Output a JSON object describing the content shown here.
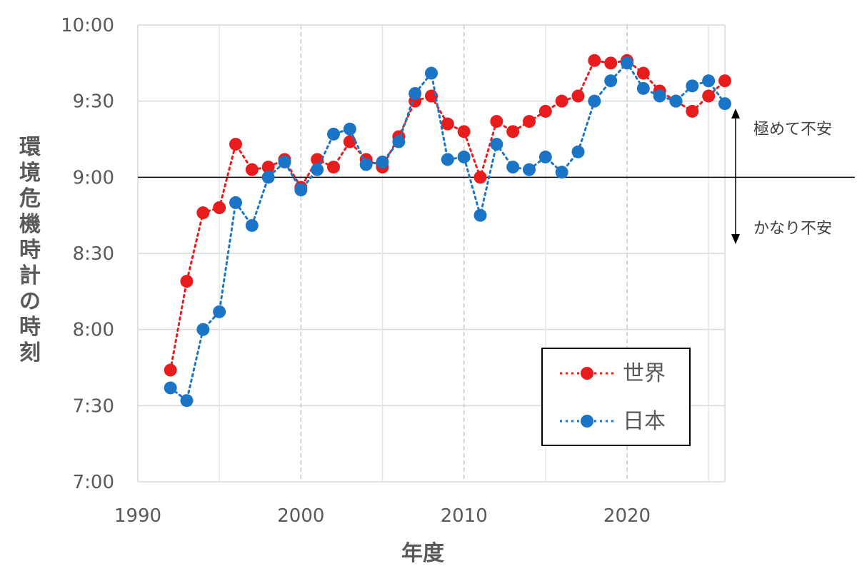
{
  "chart_data": {
    "type": "line",
    "xlabel": "年度",
    "ylabel": "環境危機時計の時刻",
    "xlim": [
      1990,
      2026
    ],
    "xticks": [
      1990,
      2000,
      2010,
      2020
    ],
    "x_tick_labels": [
      "1990",
      "2000",
      "2010",
      "2020"
    ],
    "y_unit": "minutes after midnight (clock time)",
    "ylim": [
      420,
      600
    ],
    "yticks": [
      420,
      450,
      480,
      510,
      540,
      570,
      600
    ],
    "y_tick_labels": [
      "7:00",
      "7:30",
      "8:00",
      "8:30",
      "9:00",
      "9:30",
      "10:00"
    ],
    "reference_line": 540,
    "grid": true,
    "legend_position": "lower-right",
    "series": [
      {
        "name": "世界",
        "color": "#e81c1c",
        "x": [
          1992,
          1993,
          1994,
          1995,
          1996,
          1997,
          1998,
          1999,
          2000,
          2001,
          2002,
          2003,
          2004,
          2005,
          2006,
          2007,
          2008,
          2009,
          2010,
          2011,
          2012,
          2013,
          2014,
          2015,
          2016,
          2017,
          2018,
          2019,
          2020,
          2021,
          2022,
          2023,
          2024,
          2025,
          2026
        ],
        "values": [
          464,
          499,
          526,
          528,
          553,
          543,
          544,
          547,
          536,
          547,
          544,
          554,
          547,
          544,
          556,
          570,
          572,
          561,
          558,
          540,
          562,
          558,
          562,
          566,
          570,
          572,
          586,
          585,
          586,
          581,
          574,
          570,
          566,
          572,
          578
        ]
      },
      {
        "name": "日本",
        "color": "#1b75c6",
        "x": [
          1992,
          1993,
          1994,
          1995,
          1996,
          1997,
          1998,
          1999,
          2000,
          2001,
          2002,
          2003,
          2004,
          2005,
          2006,
          2007,
          2008,
          2009,
          2010,
          2011,
          2012,
          2013,
          2014,
          2015,
          2016,
          2017,
          2018,
          2019,
          2020,
          2021,
          2022,
          2023,
          2024,
          2025,
          2026
        ],
        "values": [
          457,
          452,
          480,
          487,
          530,
          521,
          540,
          546,
          535,
          543,
          557,
          559,
          545,
          546,
          554,
          573,
          581,
          547,
          548,
          525,
          553,
          544,
          543,
          548,
          542,
          550,
          570,
          578,
          585,
          575,
          572,
          570,
          576,
          578,
          569
        ]
      }
    ],
    "annotations": {
      "above": "極めて不安",
      "below": "かなり不安"
    }
  }
}
